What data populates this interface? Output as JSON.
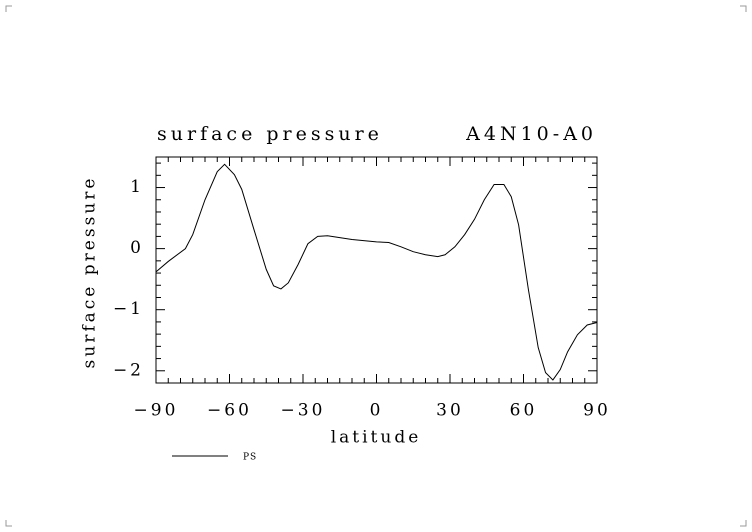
{
  "chart_data": {
    "type": "line",
    "title": "surface pressure",
    "subtitle": "A4N10-A0",
    "xlabel": "latitude",
    "ylabel": "surface pressure",
    "x": [
      -90,
      -85,
      -78,
      -75,
      -70,
      -65,
      -62,
      -58,
      -55,
      -50,
      -45,
      -42,
      -39,
      -36,
      -32,
      -28,
      -24,
      -20,
      -15,
      -10,
      0,
      5,
      10,
      15,
      20,
      25,
      28,
      32,
      36,
      40,
      44,
      48,
      52,
      55,
      58,
      62,
      66,
      69,
      72,
      75,
      78,
      82,
      86,
      90
    ],
    "series": [
      {
        "name": "PS",
        "color": "#000000",
        "values": [
          -0.38,
          -0.21,
          0.0,
          0.23,
          0.8,
          1.26,
          1.38,
          1.21,
          0.97,
          0.31,
          -0.34,
          -0.61,
          -0.66,
          -0.56,
          -0.26,
          0.08,
          0.2,
          0.21,
          0.18,
          0.15,
          0.11,
          0.1,
          0.03,
          -0.05,
          -0.1,
          -0.13,
          -0.1,
          0.03,
          0.23,
          0.48,
          0.8,
          1.05,
          1.05,
          0.85,
          0.39,
          -0.67,
          -1.62,
          -2.03,
          -2.15,
          -1.98,
          -1.69,
          -1.41,
          -1.25,
          -1.21
        ]
      }
    ],
    "xlim": [
      -90,
      90
    ],
    "ylim": [
      -2.2,
      1.5
    ],
    "xticks": [
      {
        "value": -90,
        "label": "−90"
      },
      {
        "value": -60,
        "label": "−60"
      },
      {
        "value": -30,
        "label": "−30"
      },
      0,
      30,
      60,
      90
    ],
    "yticks": [
      {
        "value": -2,
        "label": "−2"
      },
      {
        "value": -1,
        "label": "−1"
      },
      0,
      1
    ],
    "xminorticks": [
      -85,
      -80,
      -75,
      -70,
      -65,
      -55,
      -50,
      -45,
      -40,
      -35,
      -25,
      -20,
      -15,
      -10,
      -5,
      5,
      10,
      15,
      20,
      25,
      35,
      40,
      45,
      50,
      55,
      65,
      70,
      75,
      80,
      85
    ],
    "yminorticks": [
      -2.2,
      -1.8,
      -1.6,
      -1.4,
      -1.2,
      -0.8,
      -0.6,
      -0.4,
      -0.2,
      0.2,
      0.4,
      0.6,
      0.8,
      1.2,
      1.4
    ],
    "grid": false
  }
}
